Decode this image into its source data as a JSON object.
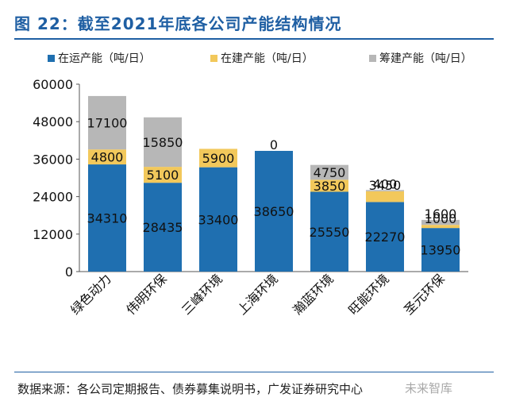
{
  "title": "图 22：截至2021年底各公司产能结构情况",
  "source": "数据来源：各公司定期报告、债券募集说明书，广发证券研究中心",
  "watermark": "未来智库",
  "chart_data": {
    "type": "bar",
    "stacked": true,
    "categories": [
      "绿色动力",
      "伟明环保",
      "三峰环境",
      "上海环境",
      "瀚蓝环境",
      "旺能环境",
      "圣元环保"
    ],
    "series": [
      {
        "name": "在运产能（吨/日）",
        "color": "#1f6fb0",
        "values": [
          34310,
          28435,
          33400,
          38650,
          25550,
          22270,
          13950
        ]
      },
      {
        "name": "在建产能（吨/日）",
        "color": "#f2c85b",
        "values": [
          4800,
          5100,
          5900,
          0,
          3850,
          3450,
          1000
        ]
      },
      {
        "name": "筹建产能（吨/日）",
        "color": "#b7b7b7",
        "values": [
          17100,
          15850,
          0,
          0,
          4750,
          400,
          1600
        ]
      }
    ],
    "ylim": [
      0,
      60000
    ],
    "yticks": [
      0,
      12000,
      24000,
      36000,
      48000,
      60000
    ],
    "data_labels": [
      [
        "34310",
        "4800",
        "17100"
      ],
      [
        "28435",
        "5100",
        "15850"
      ],
      [
        "33400",
        "5900",
        ""
      ],
      [
        "38650",
        "0",
        ""
      ],
      [
        "25550",
        "3850",
        "4750"
      ],
      [
        "22270",
        "3450",
        "400"
      ],
      [
        "13950",
        "1000",
        "1600"
      ]
    ],
    "legend_position": "top",
    "grid": false
  }
}
